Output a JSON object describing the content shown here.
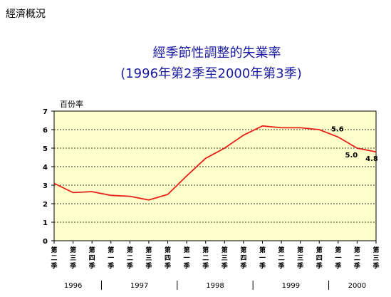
{
  "page": {
    "header": "經濟概況"
  },
  "chart_data": {
    "type": "line",
    "title": "經季節性調整的失業率",
    "subtitle": "(1996年第2季至2000年第3季)",
    "ylabel": "百份率",
    "ylim": [
      0,
      7
    ],
    "yticks": [
      "0",
      "1",
      "2",
      "3",
      "4",
      "5",
      "6",
      "7"
    ],
    "grid": true,
    "categories": [
      "第二季",
      "第三季",
      "第四季",
      "第一季",
      "第二季",
      "第三季",
      "第四季",
      "第一季",
      "第二季",
      "第三季",
      "第四季",
      "第一季",
      "第二季",
      "第三季",
      "第四季",
      "第一季",
      "第二季",
      "第三季"
    ],
    "years": [
      {
        "label": "1996",
        "span": 3
      },
      {
        "label": "1997",
        "span": 4
      },
      {
        "label": "1998",
        "span": 4
      },
      {
        "label": "1999",
        "span": 4
      },
      {
        "label": "2000",
        "span": 3
      }
    ],
    "series": [
      {
        "values": [
          3.1,
          2.6,
          2.65,
          2.45,
          2.4,
          2.2,
          2.5,
          3.5,
          4.45,
          5.0,
          5.7,
          6.2,
          6.1,
          6.1,
          6.0,
          5.6,
          5.0,
          4.8
        ],
        "color": "#e8201a"
      }
    ],
    "data_labels": [
      {
        "index": 15,
        "text": "5.6"
      },
      {
        "index": 16,
        "text": "5.0"
      },
      {
        "index": 17,
        "text": "4.8"
      }
    ],
    "plot_background": "#ffffcc"
  }
}
